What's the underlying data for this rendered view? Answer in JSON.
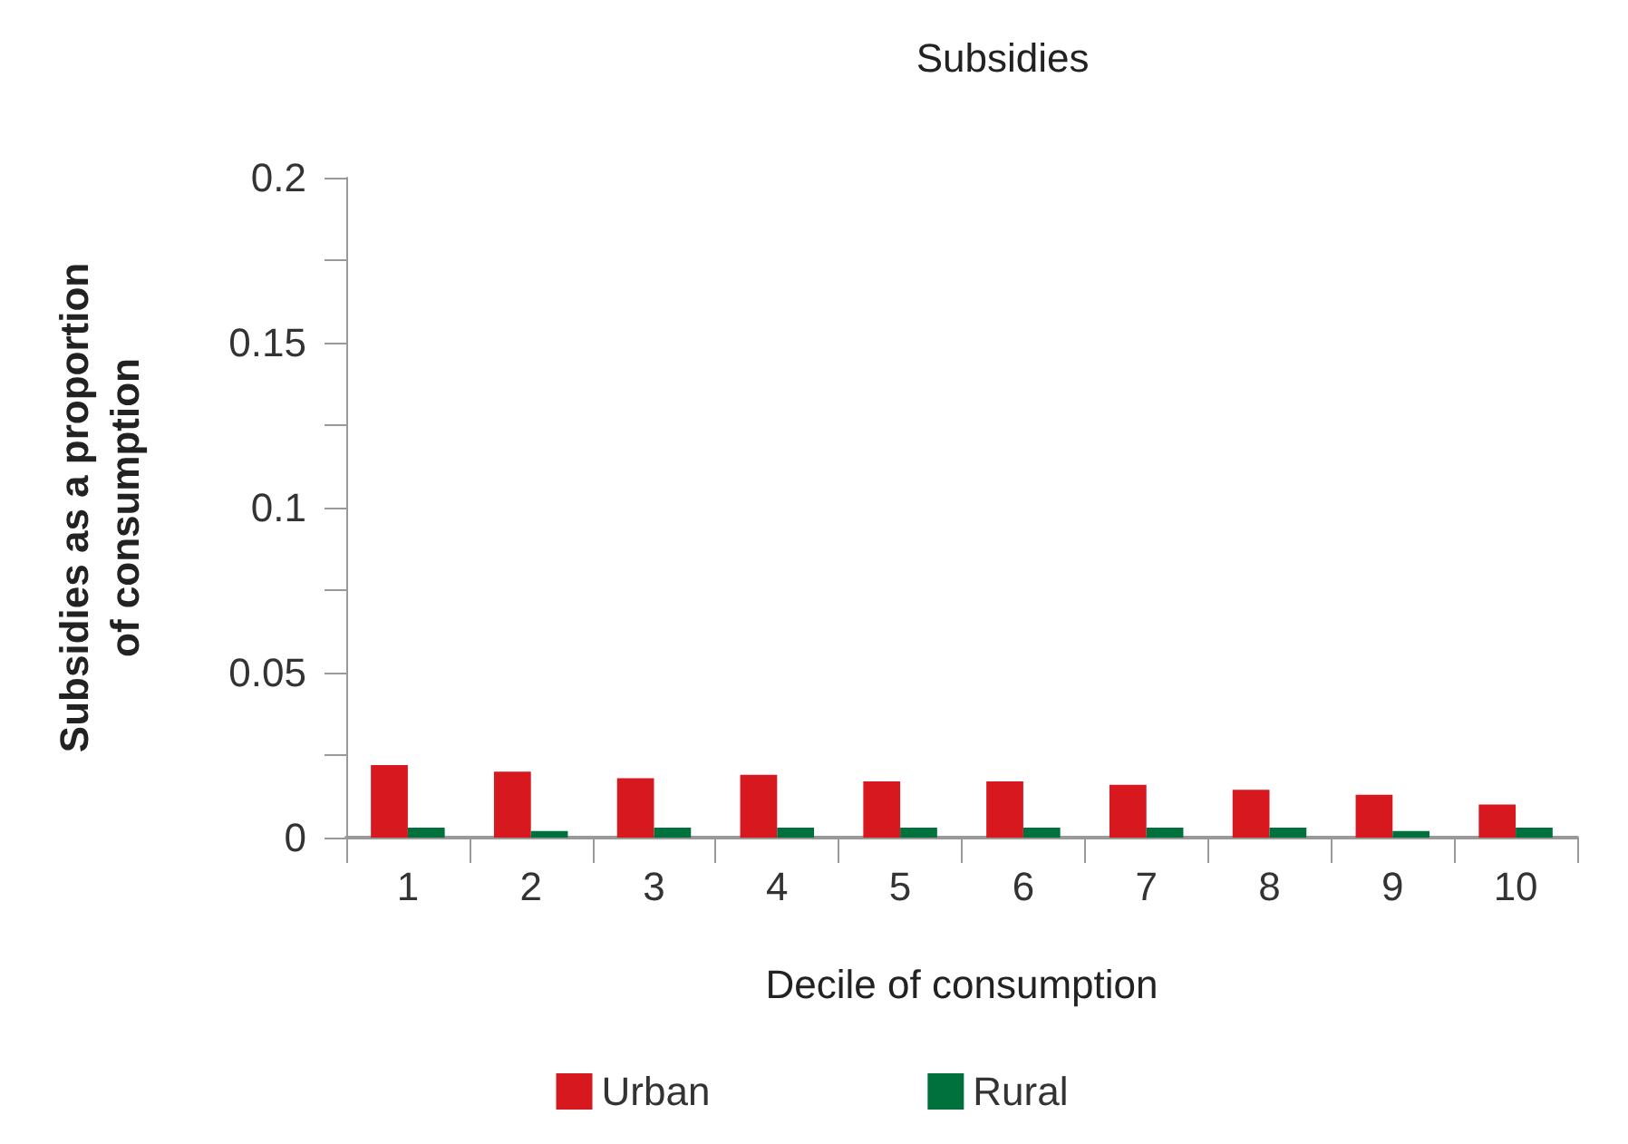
{
  "chart_data": {
    "type": "bar",
    "title": "Subsidies",
    "xlabel": "Decile of consumption",
    "ylabel": "Subsidies as a proportion\nof consumption",
    "categories": [
      "1",
      "2",
      "3",
      "4",
      "5",
      "6",
      "7",
      "8",
      "9",
      "10"
    ],
    "series": [
      {
        "name": "Urban",
        "color": "#d7191f",
        "values": [
          0.022,
          0.02,
          0.018,
          0.019,
          0.017,
          0.017,
          0.016,
          0.0145,
          0.013,
          0.01
        ]
      },
      {
        "name": "Rural",
        "color": "#00703c",
        "values": [
          0.003,
          0.002,
          0.003,
          0.003,
          0.003,
          0.003,
          0.003,
          0.003,
          0.002,
          0.003
        ]
      }
    ],
    "ylim": [
      0,
      0.2
    ],
    "yticks": [
      0,
      {
        "value": 0.025,
        "label": null
      },
      0.05,
      {
        "value": 0.075,
        "label": null
      },
      0.1,
      {
        "value": 0.125,
        "label": null
      },
      0.15,
      {
        "value": 0.175,
        "label": null
      },
      0.2
    ],
    "grid": false,
    "legend": "bottom"
  }
}
